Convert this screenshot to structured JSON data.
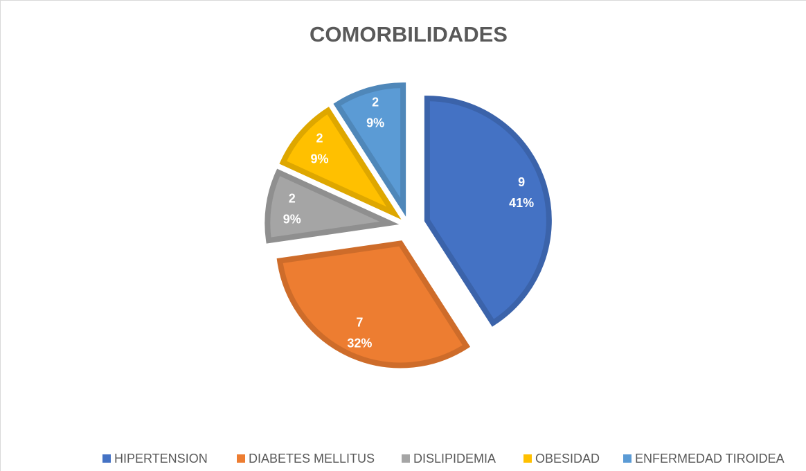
{
  "chart_data": {
    "type": "pie",
    "title": "COMORBILIDADES",
    "categories": [
      "HIPERTENSION",
      "DIABETES MELLITUS",
      "DISLIPIDEMIA",
      "OBESIDAD",
      "ENFERMEDAD TIROIDEA"
    ],
    "values": [
      9,
      7,
      2,
      2,
      2
    ],
    "percent_labels": [
      "41%",
      "32%",
      "9%",
      "9%",
      "9%"
    ],
    "colors": [
      "#4472c4",
      "#ed7d31",
      "#a5a5a5",
      "#ffc000",
      "#5b9bd5"
    ],
    "legend": "bottom"
  }
}
